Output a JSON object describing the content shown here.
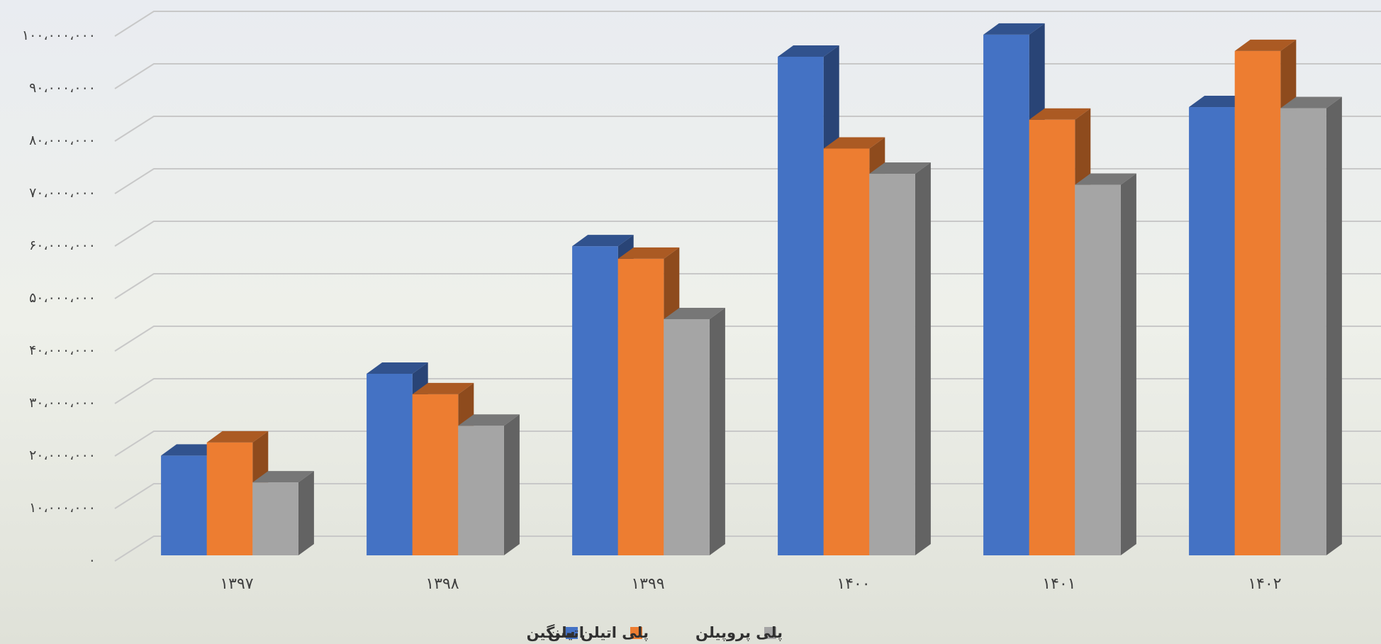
{
  "chart_data": {
    "type": "bar3d",
    "categories": [
      "۱۳۹۷",
      "۱۳۹۸",
      "۱۳۹۹",
      "۱۴۰۰",
      "۱۴۰۱",
      "۱۴۰۲"
    ],
    "series": [
      {
        "name": "اتیلن",
        "color": "#4472c4",
        "values": [
          19000000,
          34600000,
          58900000,
          95000000,
          99200000,
          85400000
        ]
      },
      {
        "name": "پلی اتیلن سنگین",
        "color": "#ed7d31",
        "values": [
          21500000,
          30700000,
          56500000,
          77500000,
          83000000,
          96100000
        ]
      },
      {
        "name": "پلی پروپیلن",
        "color": "#a5a5a5",
        "values": [
          13900000,
          24700000,
          45000000,
          72700000,
          70600000,
          85200000
        ]
      }
    ],
    "ylim": [
      0,
      100000000
    ],
    "yticks": [
      {
        "value": 0,
        "label": "۰"
      },
      {
        "value": 10000000,
        "label": "۱۰،۰۰۰،۰۰۰"
      },
      {
        "value": 20000000,
        "label": "۲۰،۰۰۰،۰۰۰"
      },
      {
        "value": 30000000,
        "label": "۳۰،۰۰۰،۰۰۰"
      },
      {
        "value": 40000000,
        "label": "۴۰،۰۰۰،۰۰۰"
      },
      {
        "value": 50000000,
        "label": "۵۰،۰۰۰،۰۰۰"
      },
      {
        "value": 60000000,
        "label": "۶۰،۰۰۰،۰۰۰"
      },
      {
        "value": 70000000,
        "label": "۷۰،۰۰۰،۰۰۰"
      },
      {
        "value": 80000000,
        "label": "۸۰،۰۰۰،۰۰۰"
      },
      {
        "value": 90000000,
        "label": "۹۰،۰۰۰،۰۰۰"
      },
      {
        "value": 100000000,
        "label": "۱۰۰،۰۰۰،۰۰۰"
      }
    ],
    "grid": true
  }
}
